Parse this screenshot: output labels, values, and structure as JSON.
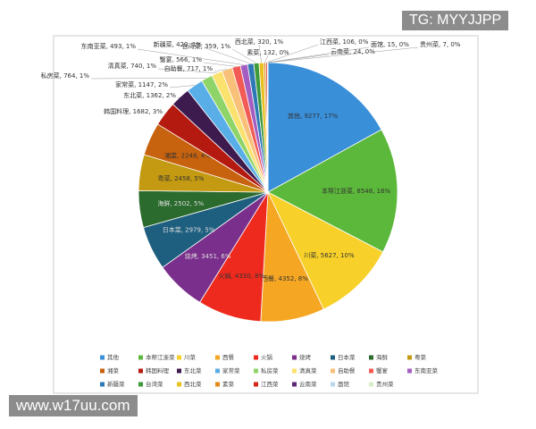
{
  "chart_data": {
    "type": "pie",
    "categories": [
      "其他",
      "本帮江浙菜",
      "川菜",
      "西餐",
      "火锅",
      "烧烤",
      "日本菜",
      "海鲜",
      "粤菜",
      "湘菜",
      "韩国料理",
      "东北菜",
      "家常菜",
      "私房菜",
      "清真菜",
      "自助餐",
      "蟹宴",
      "东南亚菜",
      "新疆菜",
      "台湾菜",
      "西北菜",
      "素菜",
      "江西菜",
      "云南菜",
      "面馆",
      "贵州菜"
    ],
    "values": [
      9277,
      8548,
      5627,
      4352,
      4330,
      3451,
      2979,
      2502,
      2458,
      2248,
      1682,
      1362,
      1147,
      764,
      740,
      717,
      566,
      493,
      420,
      359,
      320,
      132,
      106,
      24,
      15,
      7
    ],
    "value_labels": [
      "其他, 9277, 17%",
      "本帮江浙菜, 8548, 16%",
      "川菜, 5627, 10%",
      "西餐, 4352, 8%",
      "火锅, 4330, 8%",
      "烧烤, 3451, 6%",
      "日本菜, 2979, 5%",
      "海鲜, 2502, 5%",
      "粤菜, 2458, 5%",
      "湘菜, 2248, 4%",
      "韩国料理, 1682, 3%",
      "东北菜, 1362, 2%",
      "家常菜, 1147, 2%",
      "私房菜, 764, 1%",
      "清真菜, 740, 1%",
      "自助餐, 717, 1%",
      "蟹宴, 566, 1%",
      "东南亚菜, 493, 1%",
      "新疆菜, 420, 1%",
      "台湾菜, 359, 1%",
      "西北菜, 320, 1%",
      "素菜, 132, 0%",
      "江西菜, 106, 0%",
      "云南菜, 24, 0%",
      "面馆, 15, 0%",
      "贵州菜, 7, 0%"
    ],
    "colors": [
      "#3a8fd9",
      "#5cb83a",
      "#f7d129",
      "#f5a623",
      "#ee2a1e",
      "#7b2f8c",
      "#1e5f7f",
      "#2b6b2e",
      "#c49a12",
      "#c7620f",
      "#b51a10",
      "#3e1b4f",
      "#5aaee8",
      "#8fd468",
      "#fbe26e",
      "#f9c07a",
      "#f25b55",
      "#a45ec1",
      "#2e79b5",
      "#3f9a3a",
      "#e8c020",
      "#e08a1a",
      "#d32818",
      "#5e2675",
      "#b8d8f0",
      "#d8eec8"
    ],
    "legend": true
  },
  "watermarks": [
    "TG: MYYJJPP",
    "www.w17uu.com"
  ]
}
